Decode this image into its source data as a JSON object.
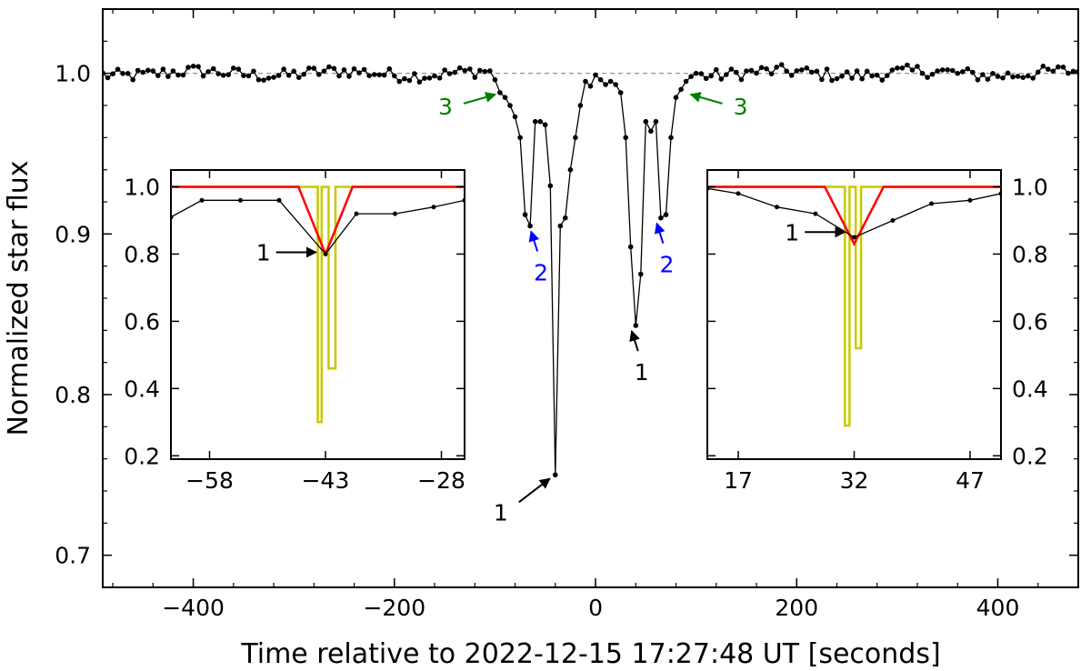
{
  "chart_data": {
    "type": "line",
    "title": "",
    "xlabel": "Time relative to 2022-12-15 17:27:48 UT [seconds]",
    "ylabel": "Normalized star flux",
    "xlim": [
      -490,
      480
    ],
    "ylim": [
      0.68,
      1.04
    ],
    "x_ticks": [
      -400,
      -200,
      0,
      200,
      400
    ],
    "x_tick_labels": [
      "−400",
      "−200",
      "0",
      "200",
      "400"
    ],
    "y_ticks": [
      0.7,
      0.8,
      0.9,
      1.0
    ],
    "y_tick_labels": [
      "0.7",
      "0.8",
      "0.9",
      "1.0"
    ],
    "baseline": 1.0,
    "series": [
      {
        "name": "Normalized star flux",
        "color": "#000000",
        "key_points": [
          [
            -100,
            0.996
          ],
          [
            -95,
            0.988
          ],
          [
            -90,
            0.985
          ],
          [
            -85,
            0.98
          ],
          [
            -80,
            0.973
          ],
          [
            -75,
            0.96
          ],
          [
            -70,
            0.912
          ],
          [
            -65,
            0.905
          ],
          [
            -60,
            0.97
          ],
          [
            -55,
            0.97
          ],
          [
            -50,
            0.968
          ],
          [
            -45,
            0.93
          ],
          [
            -40,
            0.75
          ],
          [
            -35,
            0.905
          ],
          [
            -30,
            0.91
          ],
          [
            -25,
            0.94
          ],
          [
            -20,
            0.96
          ],
          [
            -15,
            0.98
          ],
          [
            -10,
            0.995
          ],
          [
            -5,
            0.992
          ],
          [
            0,
            0.999
          ],
          [
            5,
            0.996
          ],
          [
            10,
            0.993
          ],
          [
            15,
            0.995
          ],
          [
            20,
            0.993
          ],
          [
            25,
            0.988
          ],
          [
            30,
            0.96
          ],
          [
            35,
            0.892
          ],
          [
            40,
            0.843
          ],
          [
            45,
            0.875
          ],
          [
            50,
            0.97
          ],
          [
            55,
            0.964
          ],
          [
            60,
            0.97
          ],
          [
            65,
            0.91
          ],
          [
            70,
            0.912
          ],
          [
            75,
            0.96
          ],
          [
            80,
            0.985
          ],
          [
            85,
            0.99
          ],
          [
            90,
            0.995
          ],
          [
            95,
            0.998
          ],
          [
            100,
            1.0
          ]
        ],
        "noise_amplitude": 0.004,
        "sampling_s": 5
      }
    ],
    "annotations": [
      {
        "text": "3",
        "color": "#008000",
        "x": -95,
        "y": 0.988,
        "side": "left"
      },
      {
        "text": "3",
        "color": "#008000",
        "x": 90,
        "y": 0.988,
        "side": "right"
      },
      {
        "text": "2",
        "color": "#0000ff",
        "x": -65,
        "y": 0.905,
        "side": "below"
      },
      {
        "text": "2",
        "color": "#0000ff",
        "x": 60,
        "y": 0.91,
        "side": "below"
      },
      {
        "text": "1",
        "color": "#000000",
        "x": -40,
        "y": 0.75,
        "side": "lower-left"
      },
      {
        "text": "1",
        "color": "#000000",
        "x": 35,
        "y": 0.843,
        "side": "below"
      }
    ],
    "insets": [
      {
        "name": "left-inset",
        "xlim": [
          -63,
          -25
        ],
        "ylim": [
          0.19,
          1.05
        ],
        "x_ticks": [
          -58,
          -43,
          -28
        ],
        "x_tick_labels": [
          "−58",
          "−43",
          "−28"
        ],
        "y_ticks": [
          0.2,
          0.4,
          0.6,
          0.8,
          1.0
        ],
        "y_tick_labels": [
          "0.2",
          "0.4",
          "0.6",
          "0.8",
          "1.0"
        ],
        "y_tick_side": "left",
        "observed": {
          "x": [
            -63,
            -59,
            -54,
            -49,
            -43,
            -39,
            -34,
            -29,
            -25
          ],
          "y": [
            0.91,
            0.96,
            0.96,
            0.96,
            0.8,
            0.92,
            0.92,
            0.94,
            0.96
          ],
          "color": "#000000"
        },
        "model_smoothed": {
          "x": [
            -63,
            -46.5,
            -43,
            -39.5,
            -25
          ],
          "y": [
            1.0,
            1.0,
            0.8,
            1.0,
            1.0
          ],
          "color": "#ff0000"
        },
        "model_square": {
          "x": [
            -63,
            -44,
            -44,
            -43.5,
            -43.5,
            -42.6,
            -42.6,
            -41.7,
            -41.7,
            -40.8,
            -40.8,
            -25
          ],
          "y": [
            1.0,
            1.0,
            0.3,
            0.3,
            1.0,
            1.0,
            0.46,
            0.46,
            1.0,
            1.0,
            1.0,
            1.0
          ],
          "color": "#c8c800"
        },
        "annotation": {
          "text": "1",
          "color": "#000000",
          "x": -43.5,
          "y": 0.8
        }
      },
      {
        "name": "right-inset",
        "xlim": [
          13,
          51
        ],
        "ylim": [
          0.19,
          1.05
        ],
        "x_ticks": [
          17,
          32,
          47
        ],
        "x_tick_labels": [
          "17",
          "32",
          "47"
        ],
        "y_ticks": [
          0.2,
          0.4,
          0.6,
          0.8,
          1.0
        ],
        "y_tick_labels": [
          "0.2",
          "0.4",
          "0.6",
          "0.8",
          "1.0"
        ],
        "y_tick_side": "right",
        "observed": {
          "x": [
            13,
            17,
            22,
            27,
            32,
            37,
            42,
            47,
            51
          ],
          "y": [
            0.995,
            0.98,
            0.94,
            0.92,
            0.85,
            0.9,
            0.95,
            0.96,
            0.98
          ],
          "color": "#000000"
        },
        "model_smoothed": {
          "x": [
            13,
            28.2,
            32,
            35.8,
            51
          ],
          "y": [
            1.0,
            1.0,
            0.83,
            1.0,
            1.0
          ],
          "color": "#ff0000"
        },
        "model_square": {
          "x": [
            13,
            30.8,
            30.8,
            31.4,
            31.4,
            32.2,
            32.2,
            32.9,
            32.9,
            33.6,
            33.6,
            51
          ],
          "y": [
            1.0,
            1.0,
            0.29,
            0.29,
            1.0,
            1.0,
            0.52,
            0.52,
            1.0,
            1.0,
            1.0,
            1.0
          ],
          "color": "#c8c800"
        },
        "annotation": {
          "text": "1",
          "color": "#000000",
          "x": 31.5,
          "y": 0.86
        }
      }
    ]
  }
}
